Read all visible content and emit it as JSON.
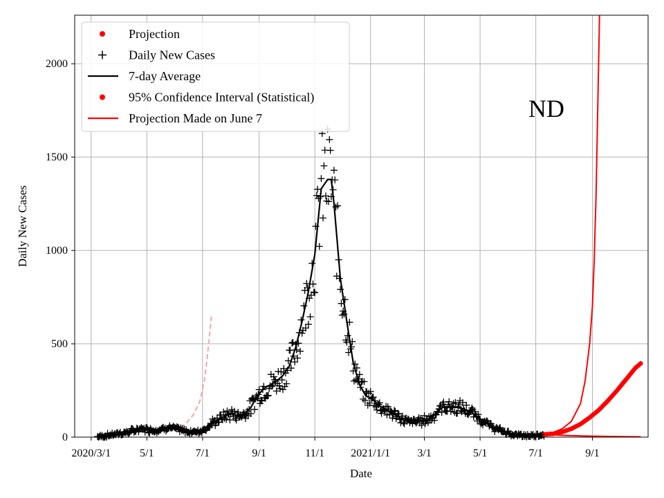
{
  "chart_data": {
    "type": "line",
    "xlabel": "Date",
    "ylabel": "Daily New Cases",
    "annotation": "ND",
    "ylim": [
      0,
      2260
    ],
    "xlim": [
      "2020-02-12",
      "2021-11-01"
    ],
    "x_ticks": [
      {
        "date": "2020-03-01",
        "label": "2020/3/1"
      },
      {
        "date": "2020-05-01",
        "label": "5/1"
      },
      {
        "date": "2020-07-01",
        "label": "7/1"
      },
      {
        "date": "2020-09-01",
        "label": "9/1"
      },
      {
        "date": "2020-11-01",
        "label": "11/1"
      },
      {
        "date": "2021-01-01",
        "label": "2021/1/1"
      },
      {
        "date": "2021-03-01",
        "label": "3/1"
      },
      {
        "date": "2021-05-01",
        "label": "5/1"
      },
      {
        "date": "2021-07-01",
        "label": "7/1"
      },
      {
        "date": "2021-09-01",
        "label": "9/1"
      }
    ],
    "y_ticks": [
      0,
      500,
      1000,
      1500,
      2000
    ],
    "grid": true,
    "legend_position": "top-left",
    "legend": [
      {
        "label": "Projection",
        "marker": "dot",
        "color": "#ff0000"
      },
      {
        "label": "Daily New Cases",
        "marker": "plus",
        "color": "#000000"
      },
      {
        "label": "7-day Average",
        "marker": "line",
        "color": "#000000"
      },
      {
        "label": "95% Confidence Interval (Statistical)",
        "marker": "dot",
        "color": "#ff0000"
      },
      {
        "label": "Projection Made on June 7",
        "marker": "line",
        "color": "#ff0000"
      }
    ],
    "colors": {
      "cases": "#000000",
      "average": "#000000",
      "projection": "#ff0000",
      "early_projection": "#f4a6a6"
    },
    "series": [
      {
        "name": "7-day Average",
        "points": [
          [
            "2020-03-08",
            2
          ],
          [
            "2020-03-15",
            5
          ],
          [
            "2020-03-22",
            12
          ],
          [
            "2020-03-29",
            18
          ],
          [
            "2020-04-05",
            22
          ],
          [
            "2020-04-12",
            28
          ],
          [
            "2020-04-19",
            38
          ],
          [
            "2020-04-26",
            45
          ],
          [
            "2020-05-03",
            40
          ],
          [
            "2020-05-10",
            38
          ],
          [
            "2020-05-17",
            42
          ],
          [
            "2020-05-24",
            55
          ],
          [
            "2020-05-31",
            45
          ],
          [
            "2020-06-07",
            38
          ],
          [
            "2020-06-14",
            30
          ],
          [
            "2020-06-21",
            28
          ],
          [
            "2020-06-28",
            32
          ],
          [
            "2020-07-05",
            48
          ],
          [
            "2020-07-12",
            75
          ],
          [
            "2020-07-19",
            95
          ],
          [
            "2020-07-26",
            115
          ],
          [
            "2020-08-02",
            125
          ],
          [
            "2020-08-09",
            115
          ],
          [
            "2020-08-16",
            125
          ],
          [
            "2020-08-23",
            160
          ],
          [
            "2020-08-30",
            220
          ],
          [
            "2020-09-06",
            260
          ],
          [
            "2020-09-13",
            280
          ],
          [
            "2020-09-20",
            300
          ],
          [
            "2020-09-27",
            330
          ],
          [
            "2020-10-04",
            380
          ],
          [
            "2020-10-11",
            480
          ],
          [
            "2020-10-18",
            620
          ],
          [
            "2020-10-25",
            780
          ],
          [
            "2020-11-01",
            980
          ],
          [
            "2020-11-08",
            1330
          ],
          [
            "2020-11-15",
            1380
          ],
          [
            "2020-11-19",
            1380
          ],
          [
            "2020-11-22",
            1250
          ],
          [
            "2020-11-29",
            850
          ],
          [
            "2020-12-06",
            620
          ],
          [
            "2020-12-13",
            400
          ],
          [
            "2020-12-20",
            280
          ],
          [
            "2020-12-27",
            220
          ],
          [
            "2021-01-03",
            205
          ],
          [
            "2021-01-10",
            170
          ],
          [
            "2021-01-17",
            150
          ],
          [
            "2021-01-24",
            130
          ],
          [
            "2021-01-31",
            110
          ],
          [
            "2021-02-07",
            90
          ],
          [
            "2021-02-14",
            80
          ],
          [
            "2021-02-21",
            85
          ],
          [
            "2021-02-28",
            90
          ],
          [
            "2021-03-07",
            100
          ],
          [
            "2021-03-14",
            130
          ],
          [
            "2021-03-21",
            160
          ],
          [
            "2021-03-28",
            165
          ],
          [
            "2021-04-04",
            160
          ],
          [
            "2021-04-11",
            155
          ],
          [
            "2021-04-18",
            140
          ],
          [
            "2021-04-25",
            120
          ],
          [
            "2021-05-02",
            95
          ],
          [
            "2021-05-09",
            70
          ],
          [
            "2021-05-16",
            50
          ],
          [
            "2021-05-23",
            35
          ],
          [
            "2021-05-30",
            25
          ],
          [
            "2021-06-06",
            15
          ],
          [
            "2021-06-13",
            10
          ],
          [
            "2021-06-20",
            8
          ],
          [
            "2021-06-27",
            8
          ],
          [
            "2021-07-04",
            12
          ],
          [
            "2021-07-10",
            15
          ]
        ]
      },
      {
        "name": "Projection Made on June 7",
        "points": [
          [
            "2021-07-10",
            15
          ],
          [
            "2021-07-20",
            25
          ],
          [
            "2021-07-30",
            45
          ],
          [
            "2021-08-09",
            85
          ],
          [
            "2021-08-19",
            180
          ],
          [
            "2021-08-24",
            300
          ],
          [
            "2021-08-29",
            500
          ],
          [
            "2021-09-01",
            700
          ],
          [
            "2021-09-03",
            950
          ],
          [
            "2021-09-05",
            1300
          ],
          [
            "2021-09-07",
            1800
          ],
          [
            "2021-09-09",
            2300
          ]
        ]
      },
      {
        "name": "Projection",
        "points": [
          [
            "2021-07-10",
            15
          ],
          [
            "2021-07-20",
            18
          ],
          [
            "2021-07-30",
            28
          ],
          [
            "2021-08-09",
            45
          ],
          [
            "2021-08-19",
            70
          ],
          [
            "2021-08-29",
            105
          ],
          [
            "2021-09-08",
            145
          ],
          [
            "2021-09-18",
            195
          ],
          [
            "2021-09-28",
            250
          ],
          [
            "2021-10-08",
            310
          ],
          [
            "2021-10-18",
            370
          ],
          [
            "2021-10-24",
            395
          ]
        ]
      },
      {
        "name": "95% Confidence Interval (Statistical)",
        "points": [
          [
            "2021-07-10",
            15
          ],
          [
            "2021-07-20",
            12
          ],
          [
            "2021-08-04",
            9
          ],
          [
            "2021-08-24",
            6
          ],
          [
            "2021-09-13",
            4
          ],
          [
            "2021-10-03",
            3
          ],
          [
            "2021-10-24",
            2
          ]
        ]
      },
      {
        "name": "early_projection",
        "points": [
          [
            "2020-06-07",
            70
          ],
          [
            "2020-06-10",
            45
          ],
          [
            "2020-06-14",
            30
          ],
          [
            "2020-06-19",
            20
          ],
          [
            "2020-06-24",
            15
          ],
          [
            "2020-06-29",
            10
          ]
        ]
      },
      {
        "name": "early_projection_upper",
        "points": [
          [
            "2020-06-07",
            50
          ],
          [
            "2020-06-14",
            80
          ],
          [
            "2020-06-21",
            120
          ],
          [
            "2020-06-28",
            190
          ],
          [
            "2020-07-03",
            300
          ],
          [
            "2020-07-06",
            420
          ],
          [
            "2020-07-09",
            560
          ],
          [
            "2020-07-11",
            660
          ]
        ]
      }
    ]
  }
}
